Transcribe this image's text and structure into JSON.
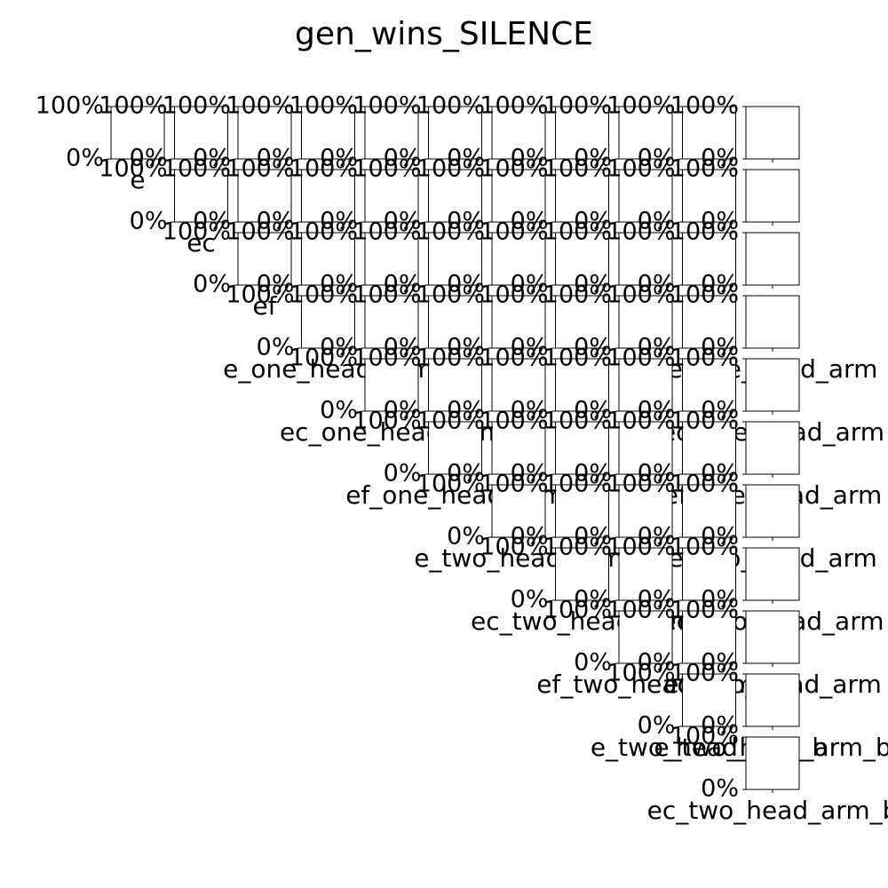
{
  "title": "gen_wins_SILENCE",
  "labels": [
    "e",
    "ec",
    "ef",
    "e_one_head_arm",
    "ec_one_head_arm",
    "ef_one_head_arm",
    "e_two_head_arm",
    "ec_two_head_arm",
    "ef_two_head_arm",
    "e_two_head_arm_b",
    "ec_two_head_arm_b"
  ],
  "yticks": [
    {
      "value": 0,
      "label": "0%"
    },
    {
      "value": 100,
      "label": "100%"
    }
  ]
}
